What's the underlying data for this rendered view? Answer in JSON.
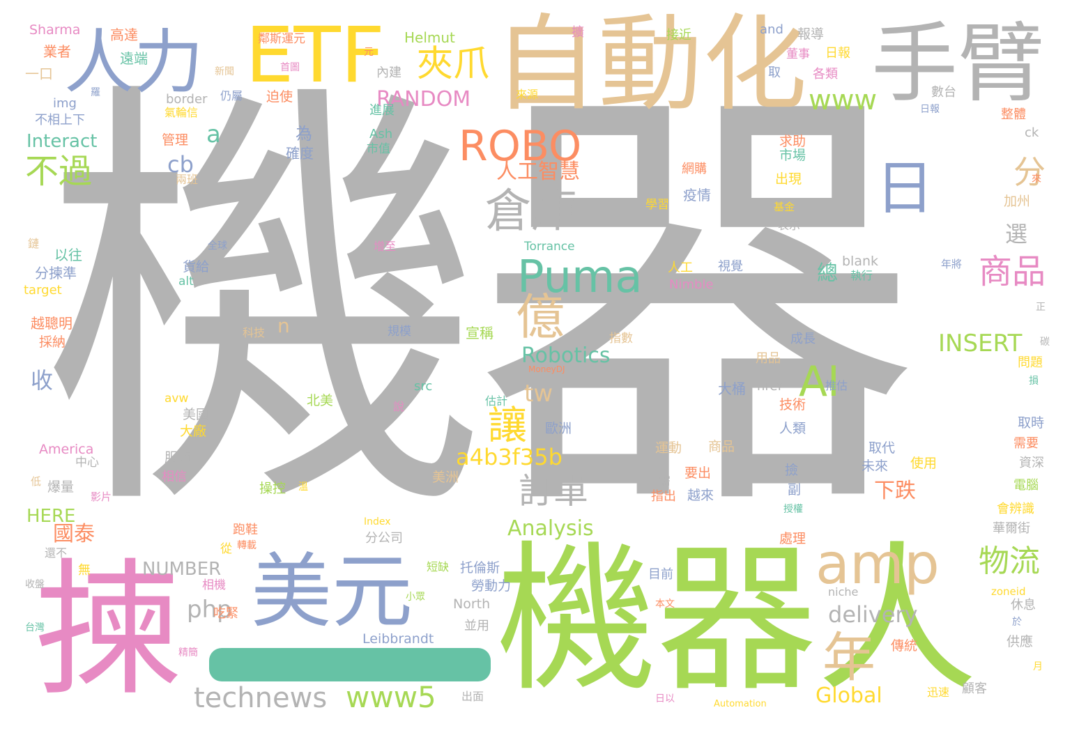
{
  "cloud": {
    "big": [
      "機器",
      "機器人",
      "揀",
      "自動化",
      "手臂",
      "ETF",
      "人力",
      "美元",
      "amp",
      "日"
    ],
    "mid": [
      "ROBO",
      "Puma",
      "AI",
      "倉庫",
      "億",
      "夾爪",
      "RANDOM",
      "www",
      "不過",
      "商品",
      "物流",
      "年",
      "讓",
      "訂單",
      "分",
      "technews",
      "www5",
      "INSERT",
      "Robotics",
      "a4b3f35b",
      "delivery",
      "php",
      "Analysis",
      "Global",
      "人工智慧",
      "tw",
      "cb",
      "a",
      "n",
      "國泰",
      "HERE",
      "NUMBER",
      "收",
      "下跌",
      "選",
      "總"
    ],
    "small": [
      "Sharma",
      "高達",
      "業者",
      "遠端",
      "一口",
      "鄰斯運元",
      "元",
      "Helmut",
      "and",
      "接近",
      "報導",
      "內建",
      "董事",
      "日報",
      "取",
      "各類",
      "擴",
      "border",
      "img",
      "不相上下",
      "氣輪信",
      "仍屬",
      "迫使",
      "新聞",
      "首圖",
      "羅",
      "來源",
      "進展",
      "數台",
      "日報",
      "整體",
      "ck",
      "Interact",
      "管理",
      "為",
      "Ash",
      "市值",
      "確度",
      "求助",
      "市場",
      "網購",
      "來",
      "兩班",
      "疫情",
      "出現",
      "學習",
      "基金",
      "表示",
      "加州",
      "鏈",
      "以往",
      "全球",
      "Torrance",
      "增至",
      "分揀準",
      "貨給",
      "blank",
      "alt",
      "Nimble",
      "人工",
      "視覺",
      "執行",
      "年將",
      "target",
      "越聰明",
      "採納",
      "科技",
      "規模",
      "宣稱",
      "指數",
      "成長",
      "用品",
      "碳",
      "問題",
      "正",
      "MoneyDJ",
      "avw",
      "src",
      "北美",
      "估計",
      "href",
      "大桶",
      "推估",
      "技術",
      "損",
      "美國",
      "大廠",
      "說",
      "歐洲",
      "人類",
      "取時",
      "需要",
      "資深",
      "America",
      "中心",
      "服飾",
      "相信",
      "美洲",
      "運動",
      "商品",
      "取代",
      "未來",
      "使用",
      "低",
      "爆量",
      "影片",
      "要出",
      "撿",
      "電腦",
      "操控",
      "溫",
      "需",
      "指出",
      "越來",
      "副",
      "授權",
      "會辨識",
      "Index",
      "分公司",
      "跑鞋",
      "轉載",
      "處理",
      "華爾街",
      "還不",
      "從",
      "無",
      "短缺",
      "托倫斯",
      "目前",
      "收盤",
      "相機",
      "勞動力",
      "小眾",
      "North",
      "niche",
      "zoneid",
      "休息",
      "台灣",
      "吃緊",
      "並用",
      "本文",
      "於",
      "精簡",
      "Leibbrandt",
      "傳統",
      "供應",
      "月",
      "出面",
      "日以",
      "Automation",
      "迅速",
      "顧客"
    ]
  }
}
